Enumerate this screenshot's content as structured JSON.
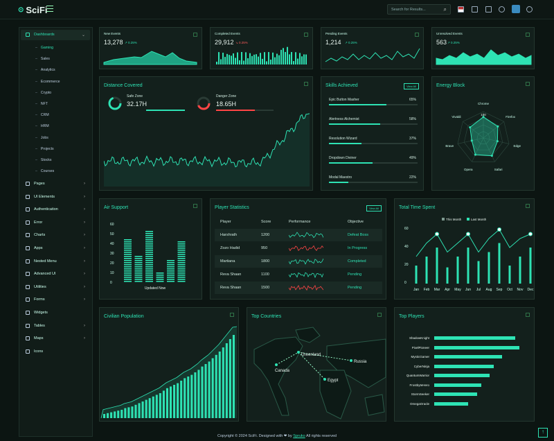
{
  "brand": "SciFi",
  "search_placeholder": "Search for Results...",
  "sidebar": {
    "dashboards": "Dashboards",
    "subs": [
      "Gaming",
      "Sales",
      "Analytics",
      "Ecommerce",
      "Crypto",
      "NFT",
      "CRM",
      "HRM",
      "Jobs",
      "Projects",
      "Stocks",
      "Courses"
    ],
    "items": [
      "Pages",
      "UI Elements",
      "Authentication",
      "Error",
      "Charts",
      "Apps",
      "Nested Menu",
      "Advanced UI",
      "Utilities",
      "Forms",
      "Widgets",
      "Tables",
      "Maps",
      "Icons"
    ]
  },
  "stats": [
    {
      "title": "New Events",
      "value": "13,278",
      "pct": "↗ 0.25%",
      "up": true
    },
    {
      "title": "Completed Events",
      "value": "29,912",
      "pct": "↘ 0.25%",
      "up": false
    },
    {
      "title": "Pending Events",
      "value": "1,214",
      "pct": "↗ 0.25%",
      "up": true
    },
    {
      "title": "Unresolved Events",
      "value": "563",
      "pct": "↗ 0.25%",
      "up": true
    }
  ],
  "distance": {
    "title": "Distance Covered",
    "safe_label": "Safe Zone",
    "safe_value": "32.17H",
    "danger_label": "Danger Zone",
    "danger_value": "18.65H"
  },
  "skills": {
    "title": "Skills Achieved",
    "view": "View All",
    "items": [
      {
        "name": "Epic Button Masher",
        "pct": "65%",
        "v": 65
      },
      {
        "name": "Alertness Alchemist",
        "pct": "58%",
        "v": 58
      },
      {
        "name": "Resolution Wizard",
        "pct": "37%",
        "v": 37
      },
      {
        "name": "Dropdown Diviner",
        "pct": "49%",
        "v": 49
      },
      {
        "name": "Modal Maestro",
        "pct": "22%",
        "v": 22
      }
    ]
  },
  "energy": {
    "title": "Energy Block",
    "labels": [
      "Chrome",
      "Firefox",
      "Edge",
      "Safari",
      "Opera",
      "Brave",
      "Vivaldi"
    ],
    "max": "100",
    "values": [
      80,
      70,
      55,
      75,
      70,
      45,
      65
    ]
  },
  "air": {
    "title": "Air Support",
    "ticks": [
      "60",
      "50",
      "40",
      "30",
      "20",
      "10",
      "0"
    ],
    "label": "Updated Now",
    "values": [
      44,
      26,
      53,
      9,
      22,
      41
    ]
  },
  "players": {
    "title": "Player Statistics",
    "view": "View All",
    "headers": [
      "Player",
      "Score",
      "Performance",
      "Objective"
    ],
    "rows": [
      {
        "name": "Harshrath",
        "score": "1200",
        "obj": "Defeat Boss",
        "color": "#2ee3b4"
      },
      {
        "name": "Zozo Hadid",
        "score": "950",
        "obj": "In Progress",
        "color": "#ff4545"
      },
      {
        "name": "Martiana",
        "score": "1800",
        "obj": "Completed",
        "color": "#2ee3b4"
      },
      {
        "name": "Reva Shaan",
        "score": "1100",
        "obj": "Pending",
        "color": "#2ee3b4"
      },
      {
        "name": "Reva Shaan",
        "score": "1500",
        "obj": "Pending",
        "color": "#ff4545"
      }
    ]
  },
  "time": {
    "title": "Total Time Spent",
    "legend": [
      "This Month",
      "Last Month"
    ],
    "ticks": [
      "60",
      "40",
      "20",
      "0"
    ],
    "months": [
      "Jan",
      "Feb",
      "Mar",
      "Apr",
      "May",
      "Jun",
      "Jul",
      "Aug",
      "Sep",
      "Oct",
      "Nov",
      "Dec"
    ],
    "bars": [
      20,
      30,
      40,
      18,
      30,
      40,
      25,
      35,
      45,
      20,
      30,
      40
    ],
    "line": [
      30,
      45,
      55,
      35,
      45,
      55,
      35,
      50,
      60,
      40,
      50,
      55
    ]
  },
  "civil": {
    "title": "Civilian Population",
    "values": [
      5,
      6,
      7,
      8,
      9,
      10,
      12,
      13,
      14,
      16,
      18,
      20,
      22,
      24,
      26,
      28,
      30,
      33,
      36,
      38,
      40,
      42,
      45,
      48,
      50,
      52,
      55,
      58,
      62,
      65,
      68,
      72,
      76,
      80,
      85,
      90,
      95,
      100
    ]
  },
  "countries": {
    "title": "Top Countries",
    "names": [
      "Greenland",
      "Canada",
      "Russia",
      "Egypt"
    ]
  },
  "top_players": {
    "title": "Top Players",
    "items": [
      {
        "name": "ShadowKnight",
        "v": 95
      },
      {
        "name": "PixelPioneer",
        "v": 100
      },
      {
        "name": "MysticGamer",
        "v": 80
      },
      {
        "name": "CyberNinja",
        "v": 70
      },
      {
        "name": "QuantumWarrior",
        "v": 65
      },
      {
        "name": "FrostbyteHero",
        "v": 55
      },
      {
        "name": "StormSeeker",
        "v": 50
      },
      {
        "name": "OmegaOracle",
        "v": 40
      }
    ]
  },
  "footer": {
    "prefix": "Copyright © 2024 SciFi. Designed with ❤ by",
    "author": "Spruko",
    "suffix": "All rights reserved"
  },
  "colors": {
    "accent": "#2ee3b4",
    "danger": "#ff4545"
  }
}
